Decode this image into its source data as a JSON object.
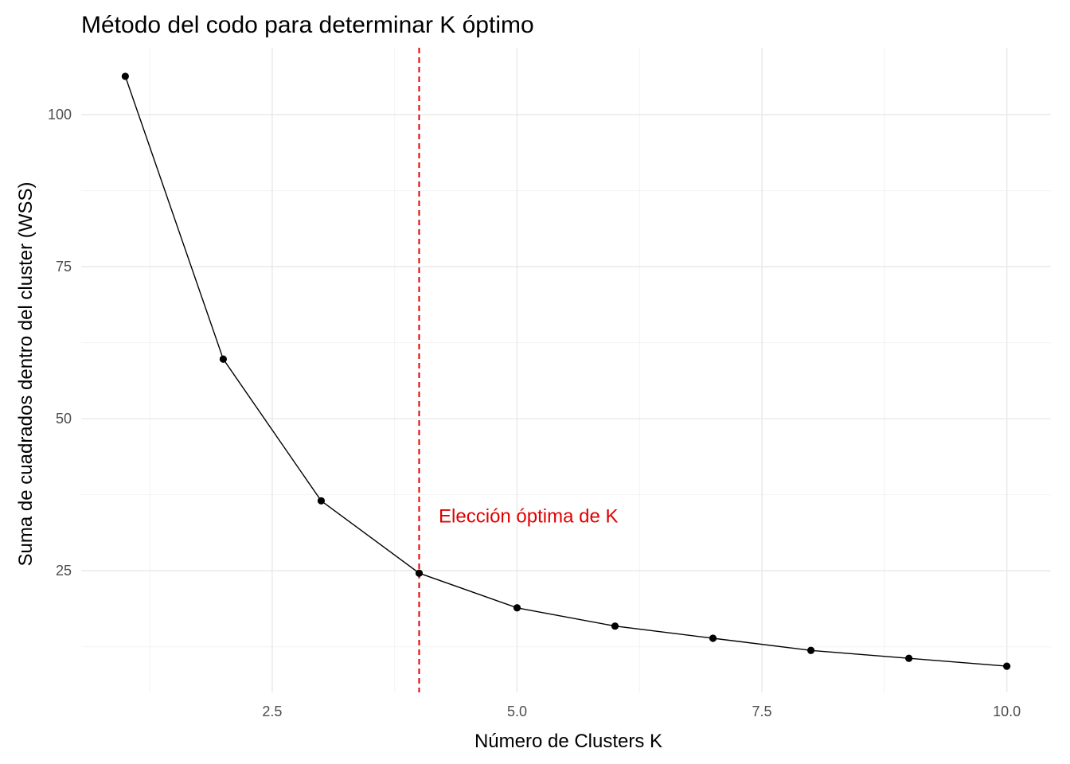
{
  "chart_data": {
    "type": "line",
    "title": "Método del codo para determinar K óptimo",
    "xlabel": "Número de Clusters K",
    "ylabel": "Suma de cuadrados dentro del cluster (WSS)",
    "x": [
      1,
      2,
      3,
      4,
      5,
      6,
      7,
      8,
      9,
      10
    ],
    "series": [
      {
        "values": [
          106.3,
          59.8,
          36.5,
          24.6,
          18.9,
          15.9,
          13.9,
          11.9,
          10.6,
          9.3
        ]
      }
    ],
    "xlim": [
      0.55,
      10.45
    ],
    "ylim": [
      5,
      111
    ],
    "xticks": [
      2.5,
      5.0,
      7.5,
      10.0
    ],
    "xtick_labels": [
      "2.5",
      "5.0",
      "7.5",
      "10.0"
    ],
    "yticks": [
      25,
      50,
      75,
      100
    ],
    "ytick_labels": [
      "25",
      "50",
      "75",
      "100"
    ],
    "grid": true,
    "vline": {
      "x": 4,
      "color": "#e00000",
      "style": "dashed"
    },
    "annotation": {
      "text": "Elección óptima de K",
      "x": 4.2,
      "y": 34,
      "color": "#e00000"
    },
    "line_color": "#000000",
    "point_color": "#000000"
  }
}
